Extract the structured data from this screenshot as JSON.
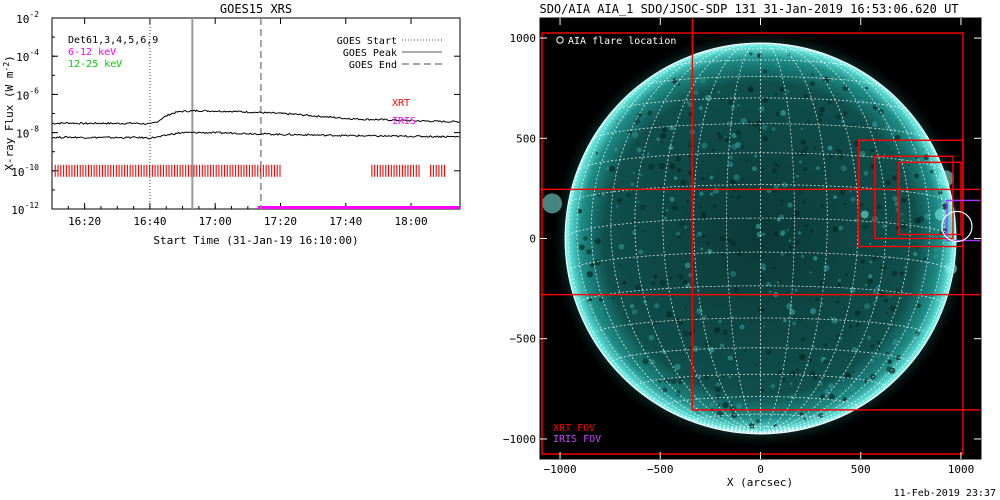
{
  "chart_data": [
    {
      "type": "line",
      "title": "GOES15 XRS",
      "xlabel": "Start Time (31-Jan-19 16:10:00)",
      "ylabel": "X-ray Flux (W m^-2)",
      "ylabel_main": "X-ray Flux (W m",
      "ylabel_sup": "-2",
      "ylabel_close": ")",
      "y_scale": "log",
      "xlim_minutes": [
        0,
        125
      ],
      "ylim": [
        1e-12,
        0.01
      ],
      "xticks": [
        {
          "minute": 10,
          "label": "16:20"
        },
        {
          "minute": 30,
          "label": "16:40"
        },
        {
          "minute": 50,
          "label": "17:00"
        },
        {
          "minute": 70,
          "label": "17:20"
        },
        {
          "minute": 90,
          "label": "17:40"
        },
        {
          "minute": 110,
          "label": "18:00"
        }
      ],
      "yticks": [
        {
          "exp": -12,
          "label": "-12"
        },
        {
          "exp": -10,
          "label": "-10"
        },
        {
          "exp": -8,
          "label": "-8"
        },
        {
          "exp": -6,
          "label": "-6"
        },
        {
          "exp": -4,
          "label": "-4"
        },
        {
          "exp": -2,
          "label": "-2"
        }
      ],
      "series": [
        {
          "name": "",
          "color": "#000000",
          "x": [
            0,
            5,
            10,
            15,
            20,
            25,
            30,
            32,
            34,
            36,
            38,
            40,
            45,
            50,
            55,
            60,
            65,
            70,
            75,
            80,
            85,
            90,
            95,
            100,
            105,
            110,
            115,
            120,
            125
          ],
          "y": [
            3e-08,
            3.2e-08,
            3e-08,
            3.1e-08,
            3e-08,
            3.1e-08,
            2.8e-08,
            3.5e-08,
            6e-08,
            9e-08,
            1.15e-07,
            1.3e-07,
            1.4e-07,
            1.35e-07,
            1.3e-07,
            1.2e-07,
            1.1e-07,
            1e-07,
            9e-08,
            7.5e-08,
            6.5e-08,
            5.5e-08,
            5e-08,
            4.8e-08,
            4.5e-08,
            4.2e-08,
            4e-08,
            3.8e-08,
            3.7e-08
          ]
        },
        {
          "name": "",
          "color": "#000000",
          "x": [
            0,
            5,
            10,
            15,
            20,
            25,
            30,
            33,
            36,
            40,
            45,
            50,
            55,
            60,
            65,
            70,
            75,
            80,
            85,
            90,
            95,
            100,
            105,
            110,
            115,
            120,
            125
          ],
          "y": [
            5.5e-09,
            5.8e-09,
            5.5e-09,
            5.6e-09,
            5.4e-09,
            5.6e-09,
            5.2e-09,
            6e-09,
            8e-09,
            1e-08,
            1e-08,
            9.8e-09,
            9.5e-09,
            9e-09,
            8.5e-09,
            8e-09,
            7.8e-09,
            7.5e-09,
            7.2e-09,
            7e-09,
            6.8e-09,
            6.6e-09,
            6.5e-09,
            6.4e-09,
            6.3e-09,
            6.2e-09,
            6.1e-09
          ]
        }
      ],
      "event_lines": [
        {
          "name": "GOES Start",
          "minute": 30,
          "style": "dotted"
        },
        {
          "name": "GOES Peak",
          "minute": 43,
          "style": "solid"
        },
        {
          "name": "GOES End",
          "minute": 64,
          "style": "dashed"
        }
      ],
      "xrt_coverage": {
        "label": "XRT",
        "color": "#ff0000",
        "y": 1e-10,
        "ranges": [
          [
            1,
            70
          ],
          [
            98,
            113
          ],
          [
            116,
            121
          ]
        ]
      },
      "iris_coverage": {
        "label": "IRIS",
        "color": "#ff00ff",
        "y": 1e-12,
        "ranges": [
          [
            63,
            125
          ]
        ]
      },
      "legend": {
        "placement": "top-right",
        "entries": [
          "GOES Start",
          "GOES Peak",
          "GOES End"
        ]
      },
      "labels_top_left": [
        {
          "text": "Det61,3,4,5,6,9",
          "color": "#000000"
        },
        {
          "text": "6-12 keV",
          "color": "#ff00ff"
        },
        {
          "text": "12-25 keV",
          "color": "#00cc00"
        }
      ],
      "labels_right": [
        {
          "text": "XRT",
          "color": "#ff0000"
        },
        {
          "text": "IRIS",
          "color": "#ff00ff"
        }
      ]
    },
    {
      "type": "scatter",
      "title": "SDO/AIA AIA_1 SDO/JSOC-SDP 131 31-Jan-2019 16:53:06.620 UT",
      "xlabel": "X (arcsec)",
      "ylabel": "",
      "xlim": [
        -1100,
        1100
      ],
      "ylim": [
        -1100,
        1100
      ],
      "xticks": [
        -1000,
        -500,
        0,
        500,
        1000
      ],
      "yticks": [
        -1000,
        -500,
        0,
        500,
        1000
      ],
      "xtick_labels": [
        "−1000",
        "−500",
        "0",
        "500",
        "1000"
      ],
      "ytick_labels": [
        "−1000",
        "−500",
        "0",
        "500",
        "1000"
      ],
      "solar_radius_arcsec": 975,
      "grid_step_deg": 10,
      "flare_location": {
        "x": 980,
        "y": 60,
        "r": 75
      },
      "fov_boxes": [
        {
          "name": "XRT FOV",
          "color": "#ff0000",
          "x0": -1090,
          "x1": 1010,
          "y0": -1075,
          "y1": 1025
        },
        {
          "name": "XRT FOV",
          "color": "#ff0000",
          "x0": -340,
          "x1": 1110,
          "y0": -855,
          "y1": 1160
        },
        {
          "name": "XRT FOV",
          "color": "#ff0000",
          "x0": -1100,
          "x1": 1100,
          "y0": -280,
          "y1": 245
        },
        {
          "name": "XRT FOV",
          "color": "#ff0000",
          "x0": 490,
          "x1": 1010,
          "y0": -40,
          "y1": 490
        },
        {
          "name": "XRT FOV",
          "color": "#ff0000",
          "x0": 570,
          "x1": 960,
          "y0": 0,
          "y1": 410
        },
        {
          "name": "XRT FOV",
          "color": "#ff0000",
          "x0": 690,
          "x1": 1000,
          "y0": 20,
          "y1": 380
        },
        {
          "name": "IRIS FOV",
          "color": "#aa33ff",
          "x0": 930,
          "x1": 1110,
          "y0": -10,
          "y1": 190
        }
      ],
      "legend_items": [
        {
          "text": "AIA flare location",
          "color": "#ffffff"
        },
        {
          "text": "XRT FOV",
          "color": "#ff0000"
        },
        {
          "text": "IRIS FOV",
          "color": "#cc44ff"
        }
      ],
      "timestamp": "11-Feb-2019 23:37"
    }
  ]
}
